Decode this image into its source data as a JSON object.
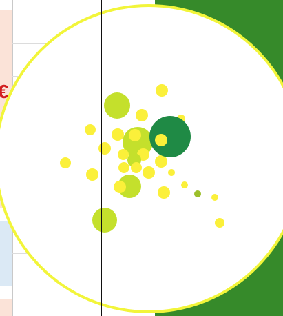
{
  "sidebar": {
    "currency_symbol": "€"
  },
  "colors": {
    "panel_peach": "#fbe3d8",
    "panel_blue": "#dbe9f5",
    "currency": "#d21f1f",
    "brand_green": "#368a2a",
    "ring": "#f2f53a",
    "bubble_yellow": "#fbf03a",
    "bubble_lime": "#c4e02c",
    "bubble_dark_green": "#1f8a45",
    "bubble_olive": "#9cbf2a"
  },
  "bubble_visual": {
    "icon": "bubble-cluster-graphic"
  }
}
